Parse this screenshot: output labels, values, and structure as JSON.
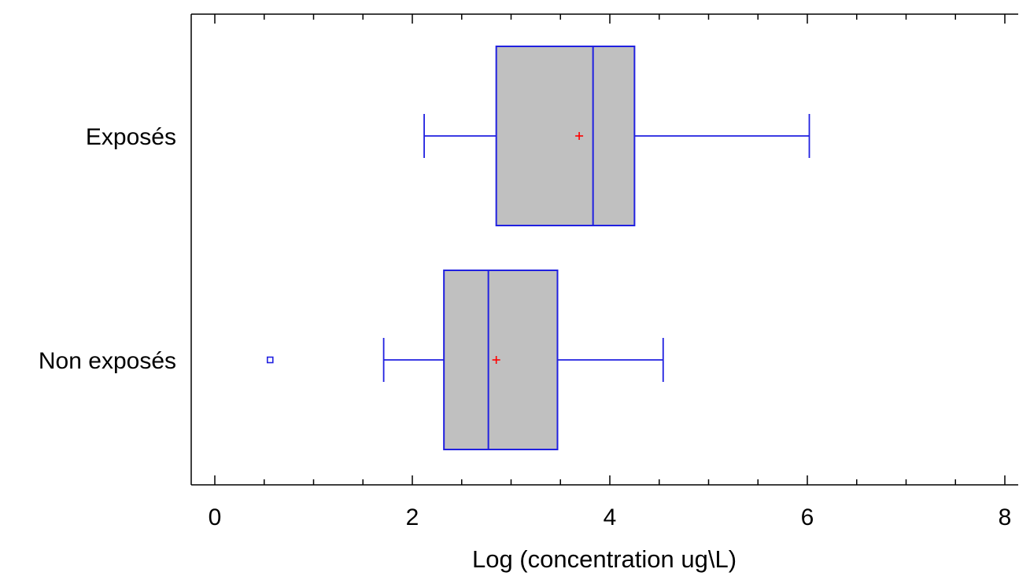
{
  "chart_data": {
    "type": "boxplot",
    "orientation": "horizontal",
    "xlabel": "Log (concentration ug\\L)",
    "xlim": [
      -0.5,
      8.2
    ],
    "xticks": [
      0,
      2,
      4,
      6,
      8
    ],
    "minor_tick_step": 0.5,
    "categories": [
      "Exposés",
      "Non exposés"
    ],
    "series": [
      {
        "category": "Exposés",
        "whisker_low": 2.12,
        "q1": 2.85,
        "median": 3.83,
        "q3": 4.25,
        "whisker_high": 6.02,
        "mean": 3.69,
        "outliers": []
      },
      {
        "category": "Non exposés",
        "whisker_low": 1.71,
        "q1": 2.32,
        "median": 2.77,
        "q3": 3.47,
        "whisker_high": 4.54,
        "mean": 2.85,
        "outliers": [
          0.56
        ]
      }
    ],
    "colors": {
      "box_fill": "#c0c0c0",
      "box_stroke": "#2020e0",
      "mean_marker": "#ff0000",
      "axis": "#000000"
    }
  }
}
